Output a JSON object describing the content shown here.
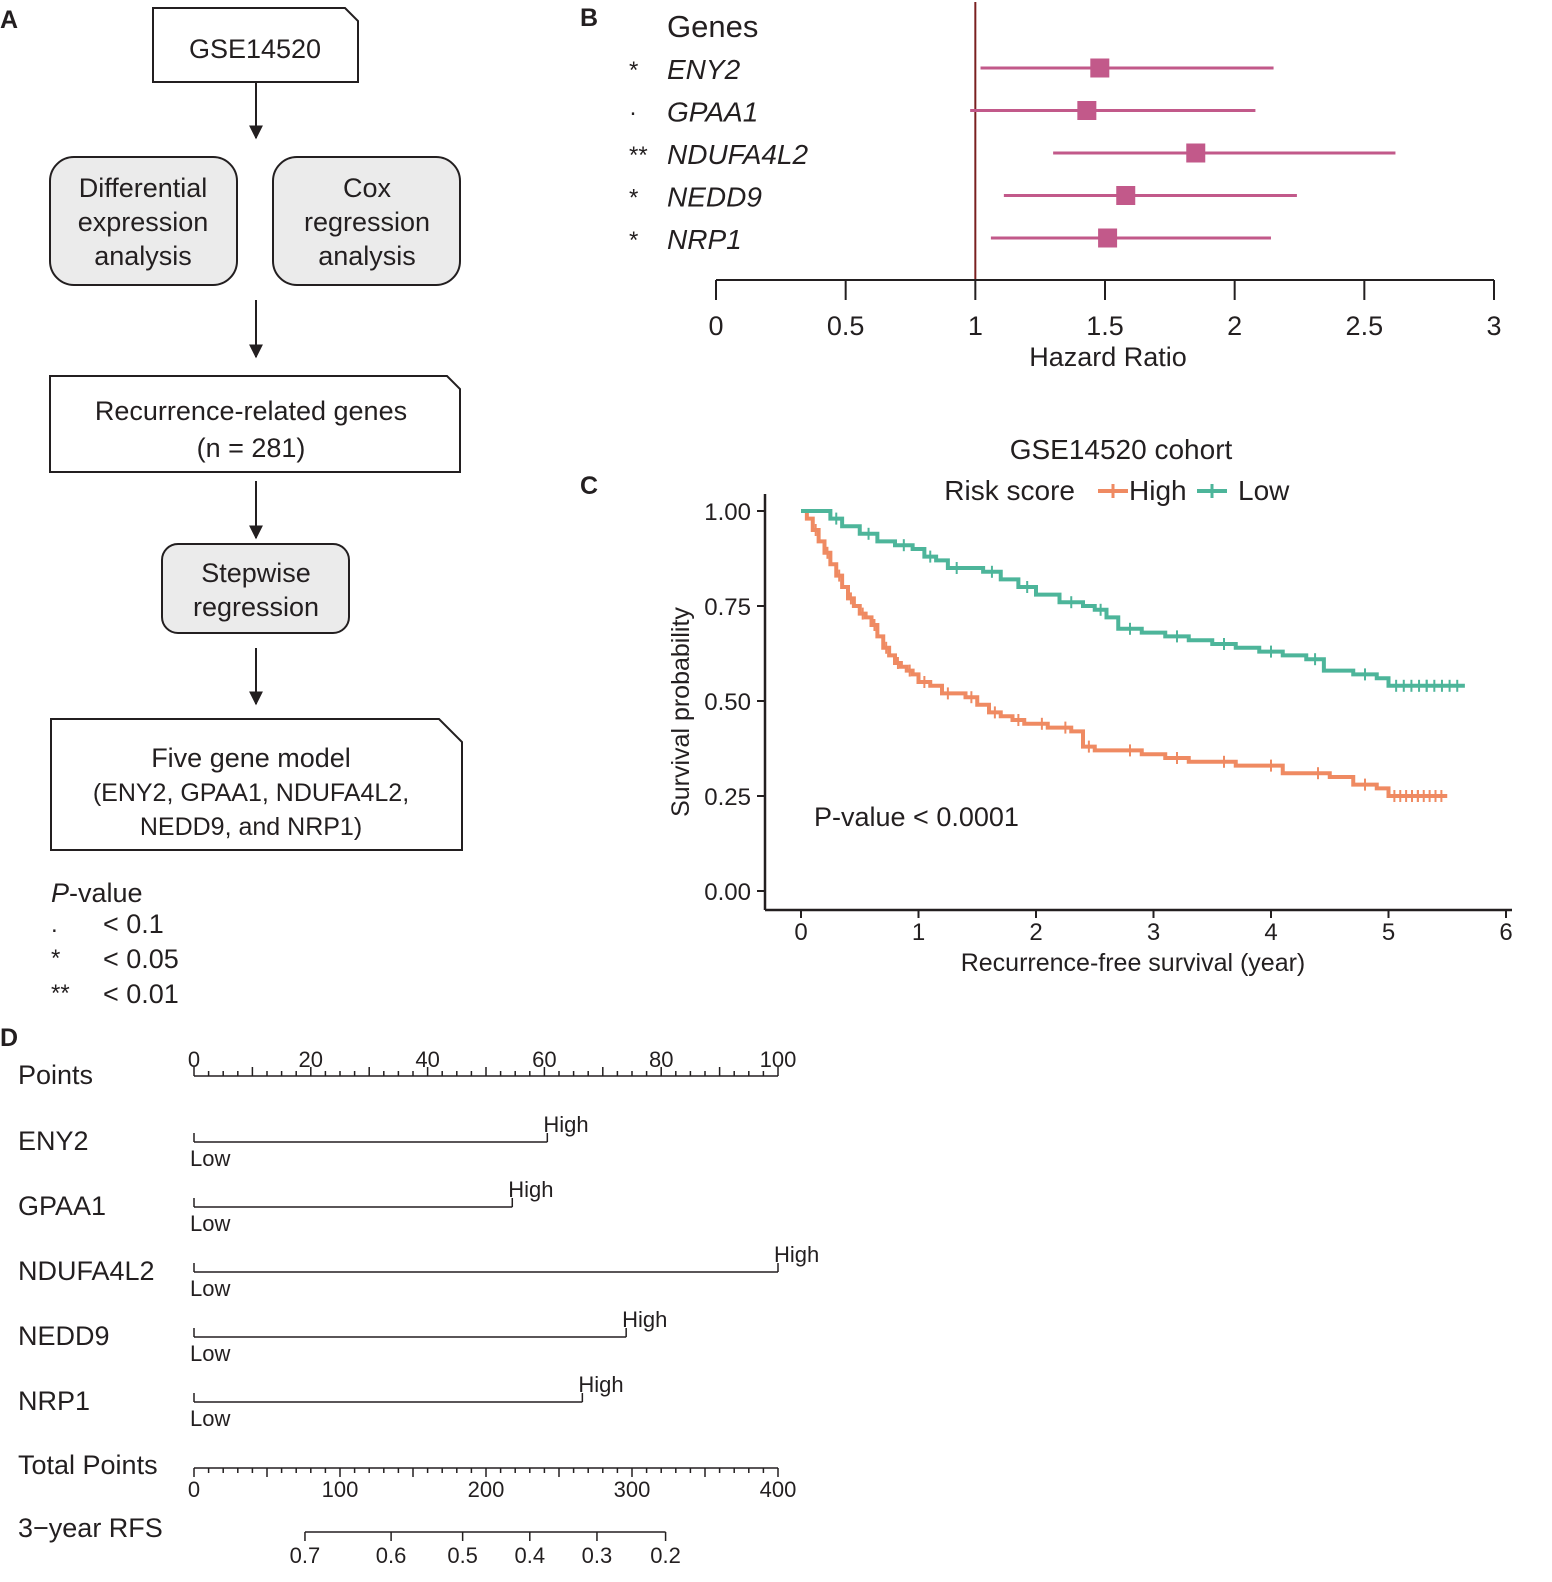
{
  "panel_labels": {
    "a": "A",
    "b": "B",
    "c": "C",
    "d": "D"
  },
  "colors": {
    "forest": "#c2598a",
    "ref_line": "#7a2020",
    "high": "#ef8a62",
    "low": "#4db59a",
    "box_gray": "#ebebeb",
    "ink": "#231f20"
  },
  "flowchart": {
    "top": "GSE14520",
    "diff": [
      "Differential",
      "expression",
      "analysis"
    ],
    "cox": [
      "Cox",
      "regression",
      "analysis"
    ],
    "recurrence": [
      "Recurrence-related genes",
      "(n = 281)"
    ],
    "stepwise": [
      "Stepwise",
      "regression"
    ],
    "model": [
      "Five gene model",
      "(ENY2, GPAA1, NDUFA4L2,",
      "NEDD9, and NRP1)"
    ]
  },
  "pvalue_legend": {
    "title_italic": "P",
    "title_rest": "-value",
    "rows": [
      {
        "symbol": ".",
        "text": "< 0.1"
      },
      {
        "symbol": "*",
        "text": "< 0.05"
      },
      {
        "symbol": "**",
        "text": "< 0.01"
      }
    ]
  },
  "chart_data": [
    {
      "panel": "B",
      "type": "scatter",
      "subtype": "forest",
      "header": "Genes",
      "xlabel": "Hazard Ratio",
      "xlim": [
        0,
        3
      ],
      "xticks": [
        0,
        0.5,
        1,
        1.5,
        2,
        2.5,
        3
      ],
      "xtick_labels": [
        "0",
        "0.5",
        "1",
        "1.5",
        "2",
        "2.5",
        "3"
      ],
      "reference_line": 1,
      "genes": [
        {
          "name": "ENY2",
          "sig": "*",
          "hr": 1.48,
          "lower": 1.02,
          "upper": 2.15
        },
        {
          "name": "GPAA1",
          "sig": "·",
          "hr": 1.43,
          "lower": 0.98,
          "upper": 2.08
        },
        {
          "name": "NDUFA4L2",
          "sig": "**",
          "hr": 1.85,
          "lower": 1.3,
          "upper": 2.62
        },
        {
          "name": "NEDD9",
          "sig": "*",
          "hr": 1.58,
          "lower": 1.11,
          "upper": 2.24
        },
        {
          "name": "NRP1",
          "sig": "*",
          "hr": 1.51,
          "lower": 1.06,
          "upper": 2.14
        }
      ]
    },
    {
      "panel": "C",
      "type": "line",
      "subtype": "kaplan-meier",
      "title": "GSE14520 cohort",
      "legend_title": "Risk score",
      "xlabel": "Recurrence-free survival (year)",
      "ylabel": "Survival probability",
      "xlim": [
        0,
        6
      ],
      "ylim": [
        0,
        1
      ],
      "xticks": [
        "0",
        "1",
        "2",
        "3",
        "4",
        "5",
        "6"
      ],
      "yticks": [
        "0.00",
        "0.25",
        "0.50",
        "0.75",
        "1.00"
      ],
      "annotation": "P-value < 0.0001",
      "series": [
        {
          "name": "High",
          "x": [
            0,
            0.05,
            0.1,
            0.15,
            0.2,
            0.25,
            0.3,
            0.35,
            0.4,
            0.45,
            0.5,
            0.55,
            0.6,
            0.65,
            0.7,
            0.75,
            0.8,
            0.85,
            0.9,
            0.95,
            1.0,
            1.1,
            1.2,
            1.3,
            1.4,
            1.5,
            1.6,
            1.7,
            1.8,
            1.9,
            2.0,
            2.1,
            2.2,
            2.3,
            2.4,
            2.5,
            2.7,
            2.9,
            3.1,
            3.3,
            3.5,
            3.7,
            3.9,
            4.1,
            4.3,
            4.5,
            4.7,
            4.9,
            5.0,
            5.5
          ],
          "values": [
            1.0,
            0.98,
            0.95,
            0.92,
            0.89,
            0.86,
            0.83,
            0.8,
            0.77,
            0.75,
            0.73,
            0.72,
            0.7,
            0.67,
            0.64,
            0.62,
            0.6,
            0.59,
            0.58,
            0.57,
            0.55,
            0.54,
            0.52,
            0.52,
            0.51,
            0.49,
            0.47,
            0.46,
            0.45,
            0.44,
            0.44,
            0.43,
            0.43,
            0.42,
            0.38,
            0.37,
            0.37,
            0.36,
            0.35,
            0.34,
            0.34,
            0.33,
            0.33,
            0.31,
            0.31,
            0.3,
            0.28,
            0.27,
            0.25,
            0.25
          ]
        },
        {
          "name": "Low",
          "x": [
            0,
            0.2,
            0.25,
            0.35,
            0.5,
            0.65,
            0.8,
            0.95,
            1.05,
            1.15,
            1.25,
            1.4,
            1.55,
            1.7,
            1.85,
            2.0,
            2.2,
            2.4,
            2.5,
            2.6,
            2.7,
            2.9,
            3.1,
            3.3,
            3.5,
            3.7,
            3.9,
            4.1,
            4.3,
            4.45,
            4.7,
            4.9,
            5.0,
            5.65
          ],
          "values": [
            1.0,
            1.0,
            0.98,
            0.96,
            0.94,
            0.92,
            0.91,
            0.9,
            0.88,
            0.87,
            0.85,
            0.85,
            0.84,
            0.82,
            0.8,
            0.78,
            0.76,
            0.75,
            0.74,
            0.72,
            0.69,
            0.68,
            0.67,
            0.66,
            0.65,
            0.64,
            0.63,
            0.62,
            0.61,
            0.58,
            0.57,
            0.56,
            0.54,
            0.54
          ]
        }
      ]
    },
    {
      "panel": "D",
      "type": "table",
      "subtype": "nomogram",
      "points_label": "Points",
      "points_ticks": [
        "0",
        "20",
        "40",
        "60",
        "80",
        "100"
      ],
      "variables": [
        {
          "name": "ENY2",
          "low": "Low",
          "high": "High",
          "points": 60.5
        },
        {
          "name": "GPAA1",
          "low": "Low",
          "high": "High",
          "points": 54.5
        },
        {
          "name": "NDUFA4L2",
          "low": "Low",
          "high": "High",
          "points": 100
        },
        {
          "name": "NEDD9",
          "low": "Low",
          "high": "High",
          "points": 74
        },
        {
          "name": "NRP1",
          "low": "Low",
          "high": "High",
          "points": 66.5
        }
      ],
      "total_label": "Total Points",
      "total_ticks": [
        "0",
        "100",
        "200",
        "300",
        "400"
      ],
      "rfs_label": "3−year RFS",
      "rfs_ticks": [
        {
          "label": "0.7",
          "total": 76
        },
        {
          "label": "0.6",
          "total": 135
        },
        {
          "label": "0.5",
          "total": 184
        },
        {
          "label": "0.4",
          "total": 230
        },
        {
          "label": "0.3",
          "total": 276
        },
        {
          "label": "0.2",
          "total": 323
        }
      ]
    }
  ]
}
